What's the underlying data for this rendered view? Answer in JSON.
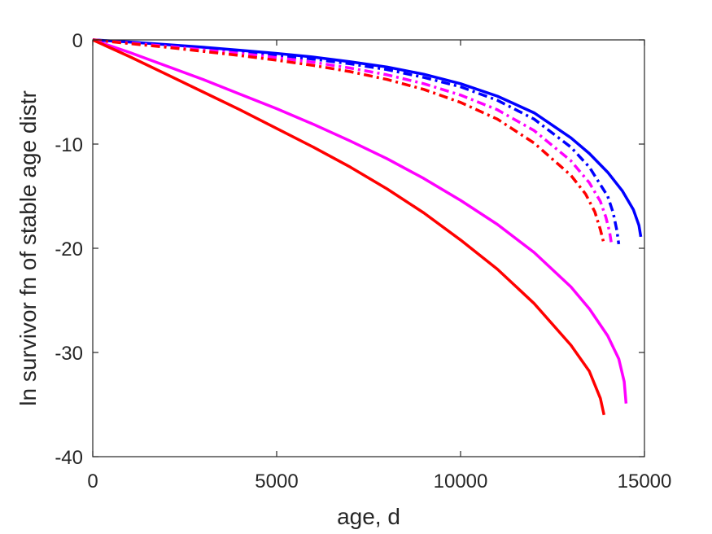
{
  "chart_data": {
    "type": "line",
    "title": "",
    "xlabel": "age, d",
    "ylabel": "ln survivor fn of stable age distr",
    "xlim": [
      0,
      15000
    ],
    "ylim": [
      -40,
      0
    ],
    "xticks": [
      0,
      5000,
      10000,
      15000
    ],
    "xtick_labels": [
      "0",
      "5000",
      "10000",
      "15000"
    ],
    "yticks": [
      0,
      -10,
      -20,
      -30,
      -40
    ],
    "ytick_labels": [
      "0",
      "-10",
      "-20",
      "-30",
      "-40"
    ],
    "grid": false,
    "legend": "none",
    "series": [
      {
        "color": "#0000ff",
        "style": "solid",
        "x": [
          0,
          1000,
          2000,
          3000,
          4000,
          5000,
          6000,
          7000,
          8000,
          9000,
          10000,
          11000,
          12000,
          13000,
          13500,
          14000,
          14400,
          14700,
          14850,
          14900
        ],
        "y": [
          0,
          -0.2,
          -0.45,
          -0.7,
          -1.0,
          -1.3,
          -1.65,
          -2.1,
          -2.6,
          -3.3,
          -4.2,
          -5.4,
          -7.0,
          -9.4,
          -10.9,
          -12.7,
          -14.5,
          -16.3,
          -17.8,
          -18.9
        ]
      },
      {
        "color": "#0000ff",
        "style": "dashdot",
        "x": [
          0,
          1000,
          2000,
          3000,
          4000,
          5000,
          6000,
          7000,
          8000,
          9000,
          10000,
          11000,
          12000,
          13000,
          13500,
          14000,
          14150,
          14250,
          14300
        ],
        "y": [
          0,
          -0.25,
          -0.5,
          -0.8,
          -1.1,
          -1.45,
          -1.85,
          -2.3,
          -2.85,
          -3.6,
          -4.5,
          -5.8,
          -7.6,
          -10.3,
          -12.2,
          -15.0,
          -16.6,
          -18.3,
          -19.6
        ]
      },
      {
        "color": "#ff00ff",
        "style": "dashdot",
        "x": [
          0,
          1000,
          2000,
          3000,
          4000,
          5000,
          6000,
          7000,
          8000,
          9000,
          10000,
          11000,
          12000,
          13000,
          13500,
          13800,
          13950,
          14050,
          14100
        ],
        "y": [
          0,
          -0.3,
          -0.6,
          -0.95,
          -1.3,
          -1.7,
          -2.15,
          -2.7,
          -3.35,
          -4.2,
          -5.3,
          -6.7,
          -8.7,
          -11.6,
          -13.7,
          -15.5,
          -17.0,
          -18.4,
          -19.5
        ]
      },
      {
        "color": "#ff0000",
        "style": "dashdot",
        "x": [
          0,
          1000,
          2000,
          3000,
          4000,
          5000,
          6000,
          7000,
          8000,
          9000,
          10000,
          11000,
          12000,
          13000,
          13400,
          13650,
          13800,
          13900
        ],
        "y": [
          0,
          -0.35,
          -0.7,
          -1.1,
          -1.5,
          -1.95,
          -2.45,
          -3.05,
          -3.8,
          -4.75,
          -6.0,
          -7.6,
          -9.9,
          -13.0,
          -14.8,
          -16.5,
          -18.2,
          -19.6
        ]
      },
      {
        "color": "#ff00ff",
        "style": "solid",
        "x": [
          0,
          1000,
          2000,
          3000,
          4000,
          5000,
          6000,
          7000,
          8000,
          9000,
          10000,
          11000,
          12000,
          13000,
          13500,
          14000,
          14300,
          14450,
          14500
        ],
        "y": [
          0,
          -1.2,
          -2.5,
          -3.8,
          -5.2,
          -6.6,
          -8.1,
          -9.7,
          -11.4,
          -13.3,
          -15.4,
          -17.7,
          -20.4,
          -23.7,
          -25.8,
          -28.4,
          -30.6,
          -32.8,
          -34.9
        ]
      },
      {
        "color": "#ff0000",
        "style": "solid",
        "x": [
          0,
          1000,
          2000,
          3000,
          4000,
          5000,
          6000,
          7000,
          8000,
          9000,
          10000,
          11000,
          12000,
          13000,
          13500,
          13800,
          13900
        ],
        "y": [
          0,
          -1.6,
          -3.3,
          -5.0,
          -6.7,
          -8.5,
          -10.3,
          -12.2,
          -14.3,
          -16.6,
          -19.2,
          -22.0,
          -25.3,
          -29.3,
          -31.8,
          -34.4,
          -36.0
        ]
      }
    ]
  }
}
